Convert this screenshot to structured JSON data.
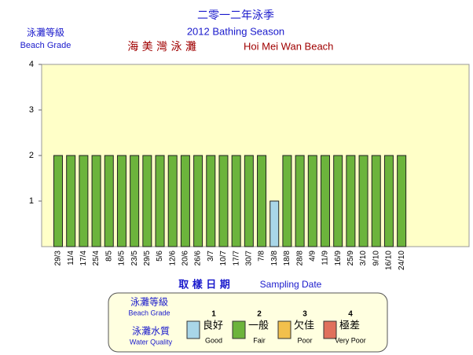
{
  "chart_data": {
    "type": "bar",
    "title": "二零一二年泳季",
    "subtitle": "2012 Bathing Season",
    "beach_zh": "海 美 灣 泳 灘",
    "beach_en": "Hoi Mei Wan Beach",
    "y_label": "泳灘等級",
    "y_label_en": "Beach Grade",
    "x_label": "取 樣 日 期",
    "x_label_en": "Sampling Date",
    "categories": [
      "29/3",
      "11/4",
      "17/4",
      "25/4",
      "8/5",
      "16/5",
      "23/5",
      "29/5",
      "5/6",
      "12/6",
      "20/6",
      "26/6",
      "3/7",
      "10/7",
      "17/7",
      "30/7",
      "7/8",
      "13/8",
      "18/8",
      "28/8",
      "4/9",
      "11/9",
      "16/9",
      "25/9",
      "3/10",
      "9/10",
      "16/10",
      "24/10"
    ],
    "values": [
      2,
      2,
      2,
      2,
      2,
      2,
      2,
      2,
      2,
      2,
      2,
      2,
      2,
      2,
      2,
      2,
      2,
      1,
      2,
      2,
      2,
      2,
      2,
      2,
      2,
      2,
      2,
      2
    ],
    "ylim": [
      0,
      4
    ],
    "yticks": [
      1,
      2,
      3,
      4
    ],
    "legend": {
      "grade_zh": "泳灘等級",
      "grade_en": "Beach Grade",
      "quality_zh": "泳灘水質",
      "quality_en": "Water Quality",
      "items": [
        {
          "grade": 1,
          "label_zh": "良好",
          "label_en": "Good",
          "color": "#a9d6e8"
        },
        {
          "grade": 2,
          "label_zh": "一般",
          "label_en": "Fair",
          "color": "#6cb43c"
        },
        {
          "grade": 3,
          "label_zh": "欠佳",
          "label_en": "Poor",
          "color": "#f2c04c"
        },
        {
          "grade": 4,
          "label_zh": "極差",
          "label_en": "Very Poor",
          "color": "#e0705c"
        }
      ]
    }
  }
}
